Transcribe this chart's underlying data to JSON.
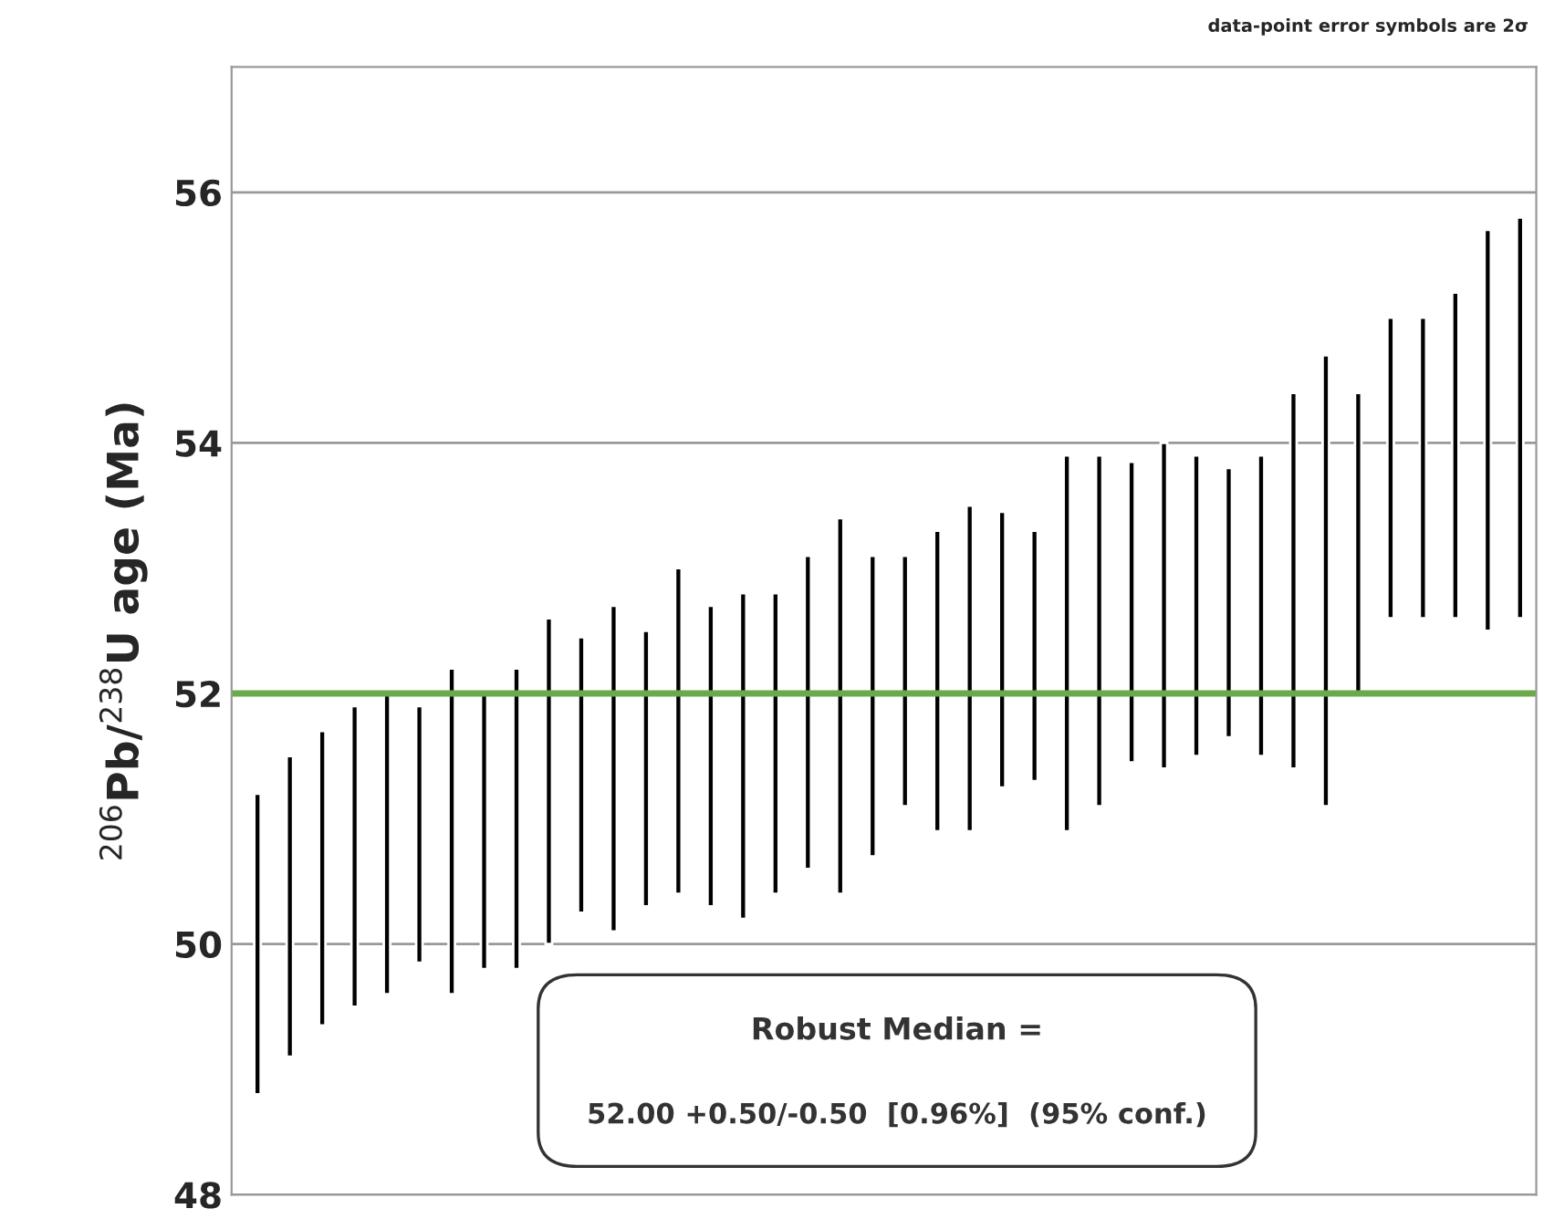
{
  "chart_data": {
    "type": "bar",
    "ylabel": "$^{206}$Pb/$^{238}$U age (Ma)",
    "categories": [
      null,
      null,
      null,
      null,
      null,
      null,
      null,
      null,
      null,
      null,
      null,
      null,
      null,
      null,
      null,
      null,
      null,
      null,
      null,
      null,
      null,
      null,
      null,
      null,
      null,
      null,
      null,
      null,
      null,
      null,
      null,
      null,
      null,
      null,
      null,
      null,
      null,
      null,
      null,
      null
    ],
    "base": [
      48.8,
      49.1,
      49.35,
      49.5,
      49.6,
      49.85,
      49.6,
      49.8,
      49.8,
      50.0,
      50.25,
      50.1,
      50.3,
      50.4,
      50.3,
      50.2,
      50.4,
      50.6,
      50.4,
      50.7,
      51.1,
      50.9,
      50.9,
      51.25,
      51.3,
      50.9,
      51.1,
      51.45,
      51.4,
      51.5,
      51.65,
      51.5,
      51.4,
      51.1,
      52.0,
      52.6,
      52.6,
      52.6,
      52.5,
      52.6
    ],
    "values": [
      2.4,
      2.4,
      2.35,
      2.4,
      2.4,
      2.05,
      2.6,
      2.2,
      2.4,
      2.6,
      2.2,
      2.6,
      2.2,
      2.6,
      2.4,
      2.6,
      2.4,
      2.5,
      3.0,
      2.4,
      2.0,
      2.4,
      2.6,
      2.2,
      2.0,
      3.0,
      2.8,
      2.4,
      2.6,
      2.4,
      2.15,
      2.4,
      3.0,
      3.6,
      2.4,
      2.4,
      2.4,
      2.6,
      3.2,
      3.2
    ],
    "color": "#000000",
    "ylim": [
      48,
      57
    ],
    "yticks": [
      48,
      50,
      52,
      54,
      56
    ],
    "grid": "y",
    "ref_lines": [
      {
        "axis": "y",
        "value": 52,
        "color": "#6aaa4a"
      }
    ],
    "annotations": [
      "data-point error symbols are 2σ",
      "Robust Median =",
      "52.00 +0.50/-0.50  [0.96%]  (95% conf.)"
    ]
  }
}
